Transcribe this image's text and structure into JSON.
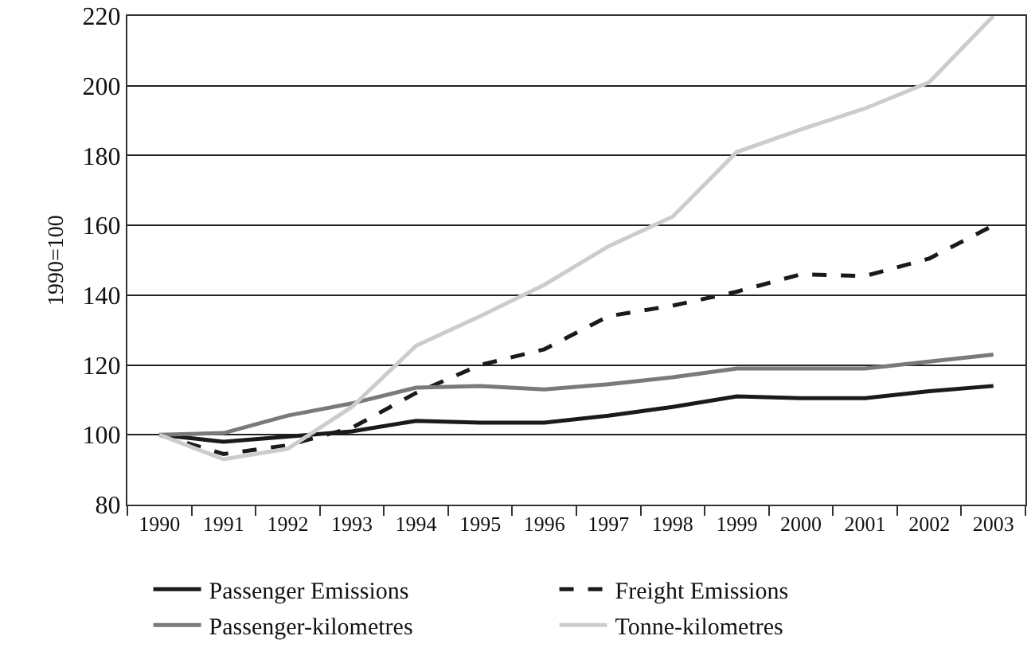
{
  "chart_data": {
    "type": "line",
    "ylabel": "1990=100",
    "categories": [
      "1990",
      "1991",
      "1992",
      "1993",
      "1994",
      "1995",
      "1996",
      "1997",
      "1998",
      "1999",
      "2000",
      "2001",
      "2002",
      "2003"
    ],
    "series": [
      {
        "name": "Passenger Emissions",
        "color": "#1a1a1a",
        "line_style": "solid",
        "values": [
          100,
          98,
          99.5,
          101,
          104,
          103.5,
          103.5,
          105.5,
          108,
          111,
          110.5,
          110.5,
          112.5,
          114
        ]
      },
      {
        "name": "Freight Emissions",
        "color": "#1a1a1a",
        "line_style": "dashed",
        "values": [
          100,
          94.5,
          97,
          102,
          112,
          120,
          124.5,
          134,
          137,
          141,
          146,
          145.5,
          150.5,
          160
        ]
      },
      {
        "name": "Passenger-kilometres",
        "color": "#7a7a7a",
        "line_style": "solid",
        "values": [
          100,
          100.5,
          105.5,
          109,
          113.5,
          114,
          113,
          114.5,
          116.5,
          119,
          119,
          119,
          121,
          123
        ]
      },
      {
        "name": "Tonne-kilometres",
        "color": "#cccccc",
        "line_style": "solid",
        "values": [
          100,
          93,
          96,
          108,
          125.5,
          134,
          143,
          154,
          162.5,
          181,
          187.5,
          193.5,
          201,
          220
        ]
      }
    ],
    "ylim": [
      80,
      220
    ],
    "yticks": [
      80,
      100,
      120,
      140,
      160,
      180,
      200,
      220
    ],
    "grid": "y",
    "legend": "bottom",
    "marker": "none"
  }
}
